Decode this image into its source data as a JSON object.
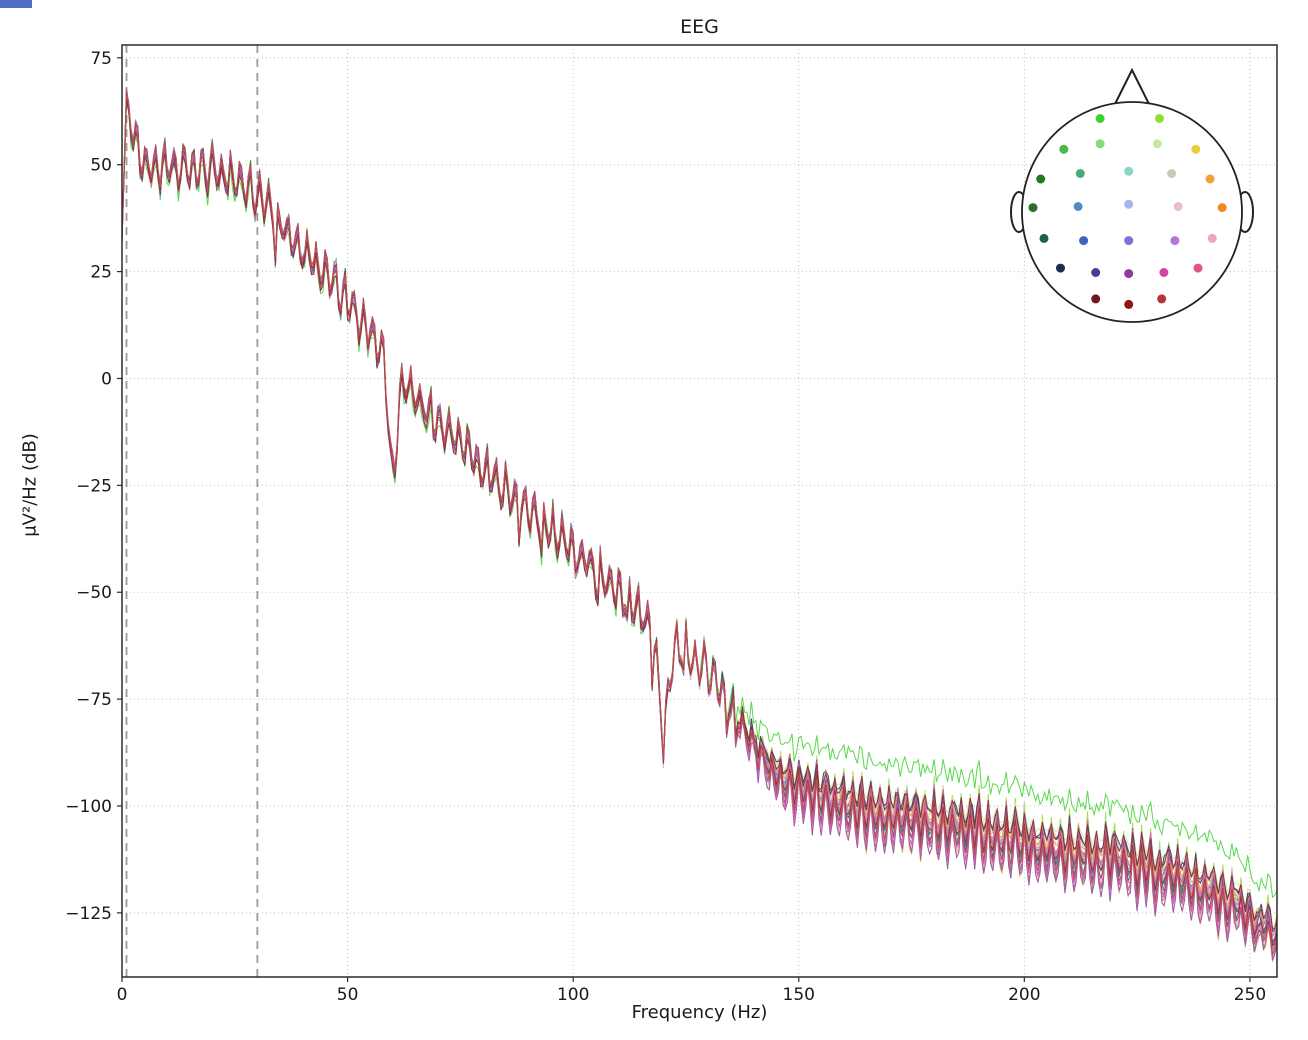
{
  "figure": {
    "title": "EEG",
    "xlabel": "Frequency (Hz)",
    "ylabel": "µV²/Hz (dB)",
    "background": "#ffffff"
  },
  "chart_data": {
    "type": "line",
    "title": "EEG",
    "xlabel": "Frequency (Hz)",
    "ylabel": "µV²/Hz (dB)",
    "xlim": [
      0,
      256
    ],
    "ylim": [
      -140,
      78
    ],
    "xticks": [
      0,
      50,
      100,
      150,
      200,
      250
    ],
    "yticks": [
      75,
      50,
      25,
      0,
      -25,
      -50,
      -75,
      -100,
      -125
    ],
    "grid": true,
    "legend": "none",
    "filter_band_lines_hz": [
      1,
      30
    ],
    "notch_dips_hz": [
      60,
      120
    ],
    "mean_psd": {
      "freqs": [
        0,
        1,
        2,
        3,
        5,
        10,
        15,
        20,
        25,
        30,
        35,
        40,
        45,
        50,
        55,
        60,
        65,
        70,
        75,
        80,
        85,
        90,
        95,
        100,
        105,
        110,
        115,
        120,
        125,
        130,
        135,
        140,
        145,
        150,
        160,
        170,
        180,
        190,
        200,
        210,
        220,
        230,
        240,
        248,
        252,
        256
      ],
      "values_db": [
        34,
        65,
        58,
        52,
        46,
        45,
        45,
        45,
        43,
        39,
        32,
        26,
        21,
        14,
        7,
        0,
        -8,
        -14,
        -19,
        -25,
        -30,
        -34,
        -39,
        -44,
        -49,
        -54,
        -59,
        -63,
        -67,
        -72,
        -78,
        -84,
        -88,
        -91,
        -94,
        -96,
        -98,
        -100,
        -103,
        -105,
        -107,
        -110,
        -113,
        -119,
        -124,
        -128
      ]
    },
    "style": {
      "grid_color": "#bdbdbd",
      "spine_color": "#2a2a2a",
      "vline_color": "#9a9a9a",
      "line_width": 1,
      "line_opacity": 0.85
    },
    "channels": [
      {
        "color": "#3bd32c",
        "pos": [
          -0.29,
          0.85
        ]
      },
      {
        "color": "#92dd31",
        "pos": [
          0.25,
          0.85
        ]
      },
      {
        "color": "#4cb84a",
        "pos": [
          -0.62,
          0.57
        ]
      },
      {
        "color": "#84da7d",
        "pos": [
          -0.29,
          0.62
        ]
      },
      {
        "color": "#c9e7a4",
        "pos": [
          0.23,
          0.62
        ]
      },
      {
        "color": "#e9cf3e",
        "pos": [
          0.58,
          0.57
        ]
      },
      {
        "color": "#1f7a22",
        "pos": [
          -0.83,
          0.3
        ]
      },
      {
        "color": "#47ab7c",
        "pos": [
          -0.47,
          0.35
        ]
      },
      {
        "color": "#8fd2c6",
        "pos": [
          -0.03,
          0.37
        ]
      },
      {
        "color": "#c3ccba",
        "pos": [
          0.36,
          0.35
        ]
      },
      {
        "color": "#efa13a",
        "pos": [
          0.71,
          0.3
        ]
      },
      {
        "color": "#2c6f2e",
        "pos": [
          -0.9,
          0.04
        ]
      },
      {
        "color": "#5289c7",
        "pos": [
          -0.49,
          0.05
        ]
      },
      {
        "color": "#a4b6ea",
        "pos": [
          -0.03,
          0.07
        ]
      },
      {
        "color": "#e7bdd0",
        "pos": [
          0.42,
          0.05
        ]
      },
      {
        "color": "#ee8a21",
        "pos": [
          0.82,
          0.04
        ]
      },
      {
        "color": "#1f5f52",
        "pos": [
          -0.8,
          -0.24
        ]
      },
      {
        "color": "#3f62c4",
        "pos": [
          -0.44,
          -0.26
        ]
      },
      {
        "color": "#7e72d4",
        "pos": [
          -0.03,
          -0.26
        ]
      },
      {
        "color": "#b277dc",
        "pos": [
          0.39,
          -0.26
        ]
      },
      {
        "color": "#f0a3c5",
        "pos": [
          0.73,
          -0.24
        ]
      },
      {
        "color": "#1c2b52",
        "pos": [
          -0.65,
          -0.51
        ]
      },
      {
        "color": "#4b3b93",
        "pos": [
          -0.33,
          -0.55
        ]
      },
      {
        "color": "#8d3ba3",
        "pos": [
          -0.03,
          -0.56
        ]
      },
      {
        "color": "#d243a4",
        "pos": [
          0.29,
          -0.55
        ]
      },
      {
        "color": "#e25587",
        "pos": [
          0.6,
          -0.51
        ]
      },
      {
        "color": "#701623",
        "pos": [
          -0.33,
          -0.79
        ]
      },
      {
        "color": "#8d1413",
        "pos": [
          -0.03,
          -0.84
        ]
      },
      {
        "color": "#b23434",
        "pos": [
          0.27,
          -0.79
        ]
      }
    ]
  },
  "inset": {
    "name": "sensor-position-head-map",
    "outline_color": "#222222",
    "fill_color": "#ffffff"
  }
}
